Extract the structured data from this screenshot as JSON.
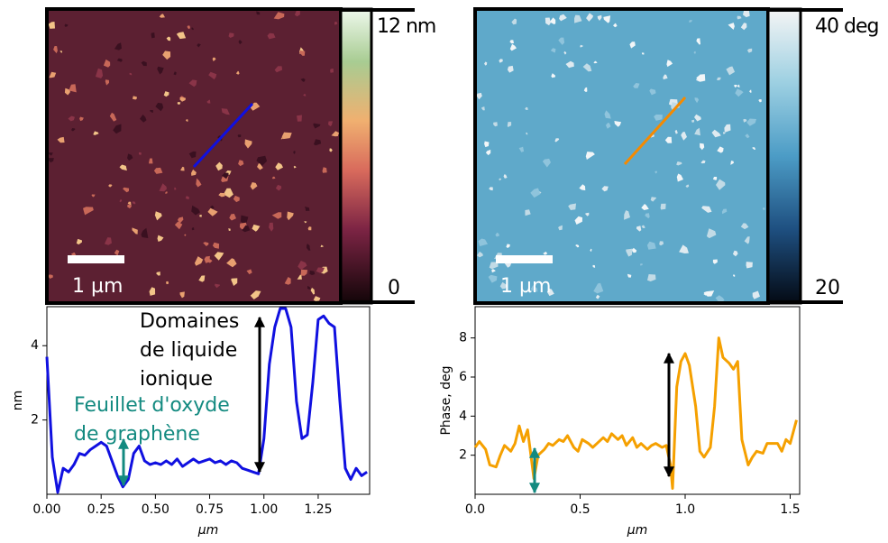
{
  "images": [
    {
      "colorbar": {
        "top": "12 nm",
        "bottom": "0"
      },
      "scale_bar": "1 µm"
    },
    {
      "colorbar": {
        "top": "40 deg",
        "bottom": "20"
      },
      "scale_bar": "1 µm"
    }
  ],
  "chart_data": [
    {
      "type": "line",
      "xlabel": "μm",
      "ylabel": "nm",
      "x": [
        0,
        0.025,
        0.05,
        0.075,
        0.1,
        0.125,
        0.15,
        0.175,
        0.2,
        0.225,
        0.25,
        0.275,
        0.3,
        0.325,
        0.35,
        0.375,
        0.4,
        0.425,
        0.45,
        0.475,
        0.5,
        0.525,
        0.55,
        0.575,
        0.6,
        0.625,
        0.65,
        0.675,
        0.7,
        0.725,
        0.75,
        0.775,
        0.8,
        0.825,
        0.85,
        0.875,
        0.9,
        0.925,
        0.95,
        0.975,
        1.0,
        1.025,
        1.05,
        1.075,
        1.1,
        1.125,
        1.15,
        1.175,
        1.2,
        1.225,
        1.25,
        1.275,
        1.3,
        1.325,
        1.35,
        1.375,
        1.4,
        1.425,
        1.45,
        1.475
      ],
      "values": [
        3.7,
        1.0,
        0.05,
        0.7,
        0.6,
        0.8,
        1.1,
        1.05,
        1.2,
        1.3,
        1.4,
        1.3,
        0.9,
        0.5,
        0.2,
        0.4,
        1.1,
        1.3,
        0.9,
        0.8,
        0.85,
        0.8,
        0.9,
        0.8,
        0.95,
        0.75,
        0.85,
        0.95,
        0.85,
        0.9,
        0.95,
        0.85,
        0.9,
        0.8,
        0.9,
        0.85,
        0.7,
        0.65,
        0.6,
        0.55,
        1.5,
        3.5,
        4.5,
        5.0,
        5.0,
        4.5,
        2.5,
        1.5,
        1.6,
        3.0,
        4.7,
        4.8,
        4.6,
        4.5,
        2.5,
        0.7,
        0.4,
        0.7,
        0.5,
        0.6
      ],
      "color": "#1010e0",
      "xlim": [
        0,
        1.487
      ],
      "ylim": [
        0,
        5.05
      ],
      "xticks": [
        {
          "value": 0,
          "label": "0.00"
        },
        {
          "value": 0.25,
          "label": "0.25"
        },
        {
          "value": 0.5,
          "label": "0.50"
        },
        {
          "value": 0.75,
          "label": "0.75"
        },
        {
          "value": 1.0,
          "label": "1.00"
        },
        {
          "value": 1.25,
          "label": "1.25"
        }
      ],
      "yticks": [
        2,
        4
      ],
      "annotations": [
        {
          "text": [
            "Domaines",
            "de liquide",
            "ionique"
          ],
          "color": "#000000"
        },
        {
          "text": [
            "Feuillet d'oxyde",
            "de graphène"
          ],
          "color": "#138a80"
        }
      ]
    },
    {
      "type": "line",
      "xlabel": "μm",
      "ylabel": "Phase, deg",
      "x": [
        0,
        0.02,
        0.05,
        0.07,
        0.1,
        0.12,
        0.14,
        0.17,
        0.19,
        0.21,
        0.23,
        0.25,
        0.28,
        0.3,
        0.33,
        0.35,
        0.37,
        0.4,
        0.42,
        0.44,
        0.47,
        0.49,
        0.51,
        0.54,
        0.56,
        0.58,
        0.61,
        0.63,
        0.65,
        0.68,
        0.7,
        0.72,
        0.75,
        0.77,
        0.79,
        0.82,
        0.84,
        0.86,
        0.89,
        0.91,
        0.93,
        0.94,
        0.96,
        0.98,
        1.0,
        1.02,
        1.05,
        1.07,
        1.09,
        1.12,
        1.14,
        1.16,
        1.18,
        1.21,
        1.23,
        1.25,
        1.27,
        1.3,
        1.32,
        1.34,
        1.37,
        1.39,
        1.41,
        1.44,
        1.46,
        1.48,
        1.5,
        1.53
      ],
      "values": [
        2.4,
        2.7,
        2.3,
        1.5,
        1.4,
        2.0,
        2.5,
        2.2,
        2.6,
        3.5,
        2.7,
        3.3,
        0.8,
        2.0,
        2.3,
        2.6,
        2.5,
        2.8,
        2.7,
        3.0,
        2.4,
        2.2,
        2.8,
        2.6,
        2.4,
        2.6,
        2.9,
        2.7,
        3.1,
        2.8,
        3.0,
        2.5,
        2.9,
        2.4,
        2.6,
        2.3,
        2.5,
        2.6,
        2.4,
        2.5,
        1.5,
        0.3,
        5.5,
        6.8,
        7.2,
        6.6,
        4.5,
        2.2,
        1.9,
        2.4,
        4.5,
        8.0,
        7.0,
        6.7,
        6.4,
        6.8,
        2.8,
        1.5,
        1.9,
        2.2,
        2.1,
        2.6,
        2.6,
        2.6,
        2.2,
        2.8,
        2.6,
        3.8
      ],
      "color": "#f5a000",
      "xlim": [
        0,
        1.545
      ],
      "ylim": [
        0,
        9.6
      ],
      "xticks": [
        {
          "value": 0,
          "label": "0.0"
        },
        0.5,
        {
          "value": 1.0,
          "label": "1.0"
        },
        1.5
      ],
      "yticks": [
        2,
        4,
        6,
        8
      ]
    }
  ]
}
